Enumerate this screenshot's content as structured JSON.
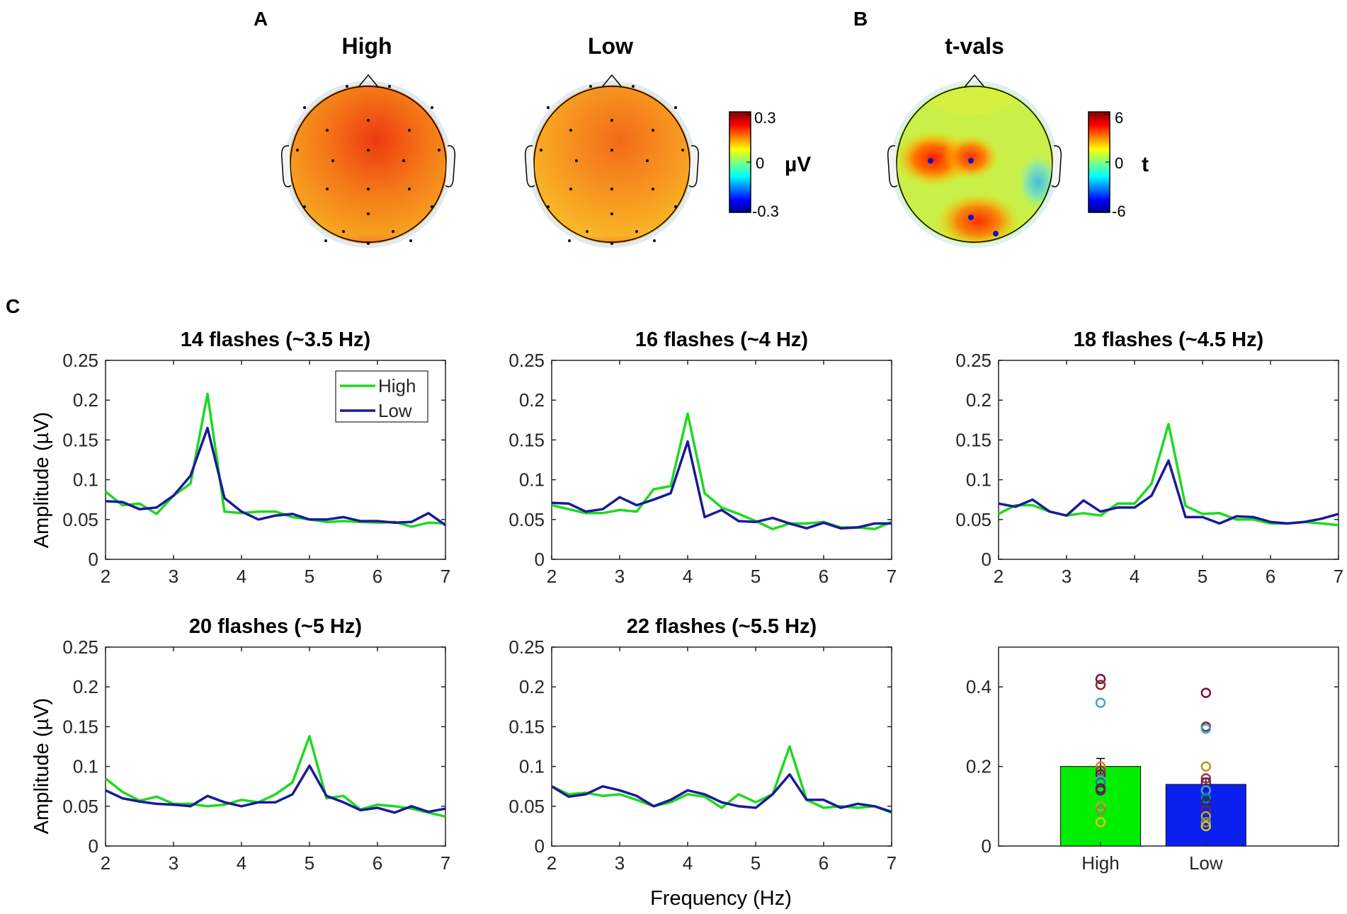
{
  "panels": {
    "a_label": "A",
    "b_label": "B",
    "c_label": "C"
  },
  "topomaps": {
    "high_title": "High",
    "low_title": "Low",
    "t_title": "t-vals",
    "uv_colorbar": {
      "max_label": "0.3",
      "mid_label": "0",
      "min_label": "-0.3",
      "unit": "µV"
    },
    "t_colorbar": {
      "max_label": "6",
      "mid_label": "0",
      "min_label": "-6",
      "unit": "t"
    }
  },
  "colors": {
    "high": "#1fd81f",
    "low": "#1a1a99",
    "bar_high": "#00ee00",
    "bar_low": "#0a1ff0"
  },
  "shared": {
    "ylabel": "Amplitude (µV)",
    "xlabel": "Frequency (Hz)"
  },
  "chart_data": [
    {
      "type": "line",
      "title": "14 flashes (~3.5 Hz)",
      "xlim": [
        2,
        7
      ],
      "ylim": [
        0,
        0.25
      ],
      "xticks": [
        "2",
        "3",
        "4",
        "5",
        "6",
        "7"
      ],
      "yticks": [
        "0",
        "0.05",
        "0.1",
        "0.15",
        "0.2",
        "0.25"
      ],
      "legend": {
        "placement": "top-right",
        "entries": [
          "High",
          "Low"
        ]
      },
      "x": [
        2,
        2.25,
        2.5,
        2.75,
        3,
        3.25,
        3.5,
        3.75,
        4,
        4.25,
        4.5,
        4.75,
        5,
        5.25,
        5.5,
        5.75,
        6,
        6.25,
        6.5,
        6.75,
        7
      ],
      "series": [
        {
          "name": "High",
          "values": [
            0.085,
            0.068,
            0.07,
            0.057,
            0.08,
            0.095,
            0.208,
            0.06,
            0.058,
            0.06,
            0.06,
            0.053,
            0.05,
            0.047,
            0.048,
            0.047,
            0.046,
            0.047,
            0.041,
            0.046,
            0.045
          ]
        },
        {
          "name": "Low",
          "values": [
            0.073,
            0.072,
            0.063,
            0.065,
            0.08,
            0.105,
            0.165,
            0.077,
            0.06,
            0.05,
            0.055,
            0.057,
            0.05,
            0.05,
            0.053,
            0.048,
            0.048,
            0.046,
            0.047,
            0.058,
            0.043
          ]
        }
      ]
    },
    {
      "type": "line",
      "title": "16 flashes (~4 Hz)",
      "xlim": [
        2,
        7
      ],
      "ylim": [
        0,
        0.25
      ],
      "xticks": [
        "2",
        "3",
        "4",
        "5",
        "6",
        "7"
      ],
      "yticks": [
        "0",
        "0.05",
        "0.1",
        "0.15",
        "0.2",
        "0.25"
      ],
      "x": [
        2,
        2.25,
        2.5,
        2.75,
        3,
        3.25,
        3.5,
        3.75,
        4,
        4.25,
        4.5,
        4.75,
        5,
        5.25,
        5.5,
        5.75,
        6,
        6.25,
        6.5,
        6.75,
        7
      ],
      "series": [
        {
          "name": "High",
          "values": [
            0.068,
            0.063,
            0.058,
            0.058,
            0.062,
            0.06,
            0.088,
            0.092,
            0.183,
            0.083,
            0.065,
            0.057,
            0.048,
            0.038,
            0.045,
            0.045,
            0.047,
            0.04,
            0.04,
            0.038,
            0.047
          ]
        },
        {
          "name": "Low",
          "values": [
            0.071,
            0.07,
            0.06,
            0.063,
            0.078,
            0.068,
            0.075,
            0.083,
            0.148,
            0.053,
            0.062,
            0.048,
            0.047,
            0.052,
            0.045,
            0.039,
            0.046,
            0.039,
            0.04,
            0.045,
            0.045
          ]
        }
      ]
    },
    {
      "type": "line",
      "title": "18 flashes (~4.5 Hz)",
      "xlim": [
        2,
        7
      ],
      "ylim": [
        0,
        0.25
      ],
      "xticks": [
        "2",
        "3",
        "4",
        "5",
        "6",
        "7"
      ],
      "yticks": [
        "0",
        "0.05",
        "0.1",
        "0.15",
        "0.2",
        "0.25"
      ],
      "x": [
        2,
        2.25,
        2.5,
        2.75,
        3,
        3.25,
        3.5,
        3.75,
        4,
        4.25,
        4.5,
        4.75,
        5,
        5.25,
        5.5,
        5.75,
        6,
        6.25,
        6.5,
        6.75,
        7
      ],
      "series": [
        {
          "name": "High",
          "values": [
            0.057,
            0.068,
            0.068,
            0.06,
            0.055,
            0.058,
            0.055,
            0.07,
            0.07,
            0.095,
            0.17,
            0.067,
            0.057,
            0.058,
            0.05,
            0.05,
            0.045,
            0.045,
            0.047,
            0.045,
            0.043
          ]
        },
        {
          "name": "Low",
          "values": [
            0.07,
            0.066,
            0.075,
            0.06,
            0.055,
            0.074,
            0.06,
            0.065,
            0.065,
            0.08,
            0.124,
            0.053,
            0.053,
            0.045,
            0.054,
            0.053,
            0.047,
            0.045,
            0.047,
            0.051,
            0.057
          ]
        }
      ]
    },
    {
      "type": "line",
      "title": "20 flashes (~5 Hz)",
      "xlim": [
        2,
        7
      ],
      "ylim": [
        0,
        0.25
      ],
      "xticks": [
        "2",
        "3",
        "4",
        "5",
        "6",
        "7"
      ],
      "yticks": [
        "0",
        "0.05",
        "0.1",
        "0.15",
        "0.2",
        "0.25"
      ],
      "x": [
        2,
        2.25,
        2.5,
        2.75,
        3,
        3.25,
        3.5,
        3.75,
        4,
        4.25,
        4.5,
        4.75,
        5,
        5.25,
        5.5,
        5.75,
        6,
        6.25,
        6.5,
        6.75,
        7
      ],
      "series": [
        {
          "name": "High",
          "values": [
            0.085,
            0.068,
            0.057,
            0.062,
            0.053,
            0.053,
            0.05,
            0.052,
            0.058,
            0.055,
            0.065,
            0.08,
            0.138,
            0.06,
            0.063,
            0.046,
            0.052,
            0.05,
            0.047,
            0.042,
            0.037
          ]
        },
        {
          "name": "Low",
          "values": [
            0.07,
            0.06,
            0.056,
            0.053,
            0.052,
            0.05,
            0.063,
            0.055,
            0.05,
            0.055,
            0.055,
            0.065,
            0.101,
            0.063,
            0.055,
            0.045,
            0.048,
            0.042,
            0.05,
            0.043,
            0.047
          ]
        }
      ]
    },
    {
      "type": "line",
      "title": "22 flashes (~5.5 Hz)",
      "xlim": [
        2,
        7
      ],
      "ylim": [
        0,
        0.25
      ],
      "xticks": [
        "2",
        "3",
        "4",
        "5",
        "6",
        "7"
      ],
      "yticks": [
        "0",
        "0.05",
        "0.1",
        "0.15",
        "0.2",
        "0.25"
      ],
      "x": [
        2,
        2.25,
        2.5,
        2.75,
        3,
        3.25,
        3.5,
        3.75,
        4,
        4.25,
        4.5,
        4.75,
        5,
        5.25,
        5.5,
        5.75,
        6,
        6.25,
        6.5,
        6.75,
        7
      ],
      "series": [
        {
          "name": "High",
          "values": [
            0.075,
            0.065,
            0.067,
            0.063,
            0.065,
            0.058,
            0.05,
            0.055,
            0.065,
            0.062,
            0.048,
            0.065,
            0.055,
            0.065,
            0.125,
            0.058,
            0.048,
            0.05,
            0.048,
            0.05,
            0.042
          ]
        },
        {
          "name": "Low",
          "values": [
            0.075,
            0.062,
            0.065,
            0.075,
            0.07,
            0.063,
            0.05,
            0.058,
            0.07,
            0.065,
            0.055,
            0.05,
            0.048,
            0.065,
            0.09,
            0.058,
            0.058,
            0.048,
            0.053,
            0.05,
            0.043
          ]
        }
      ]
    },
    {
      "type": "bar",
      "title": "",
      "categories": [
        "High",
        "Low"
      ],
      "values": [
        0.2,
        0.155
      ],
      "errors": [
        0.02,
        0.015
      ],
      "ylim": [
        0,
        0.5
      ],
      "yticks": [
        "0",
        "0.2",
        "0.4"
      ],
      "points": [
        [
          0.42,
          0.405,
          0.36,
          0.2,
          0.19,
          0.18,
          0.165,
          0.16,
          0.145,
          0.14,
          0.1,
          0.09,
          0.06
        ],
        [
          0.385,
          0.3,
          0.295,
          0.2,
          0.17,
          0.16,
          0.14,
          0.12,
          0.11,
          0.09,
          0.075,
          0.06,
          0.05
        ]
      ],
      "point_colors": [
        "#7a1040",
        "#8b2a2a",
        "#3fa8d0",
        "#d48a1a",
        "#a33",
        "#6b1a6b",
        "#3fa8d0",
        "#1a8080",
        "#333",
        "#6b1a6b",
        "#a0b040",
        "#8a8a40",
        "#e0c020"
      ]
    }
  ]
}
